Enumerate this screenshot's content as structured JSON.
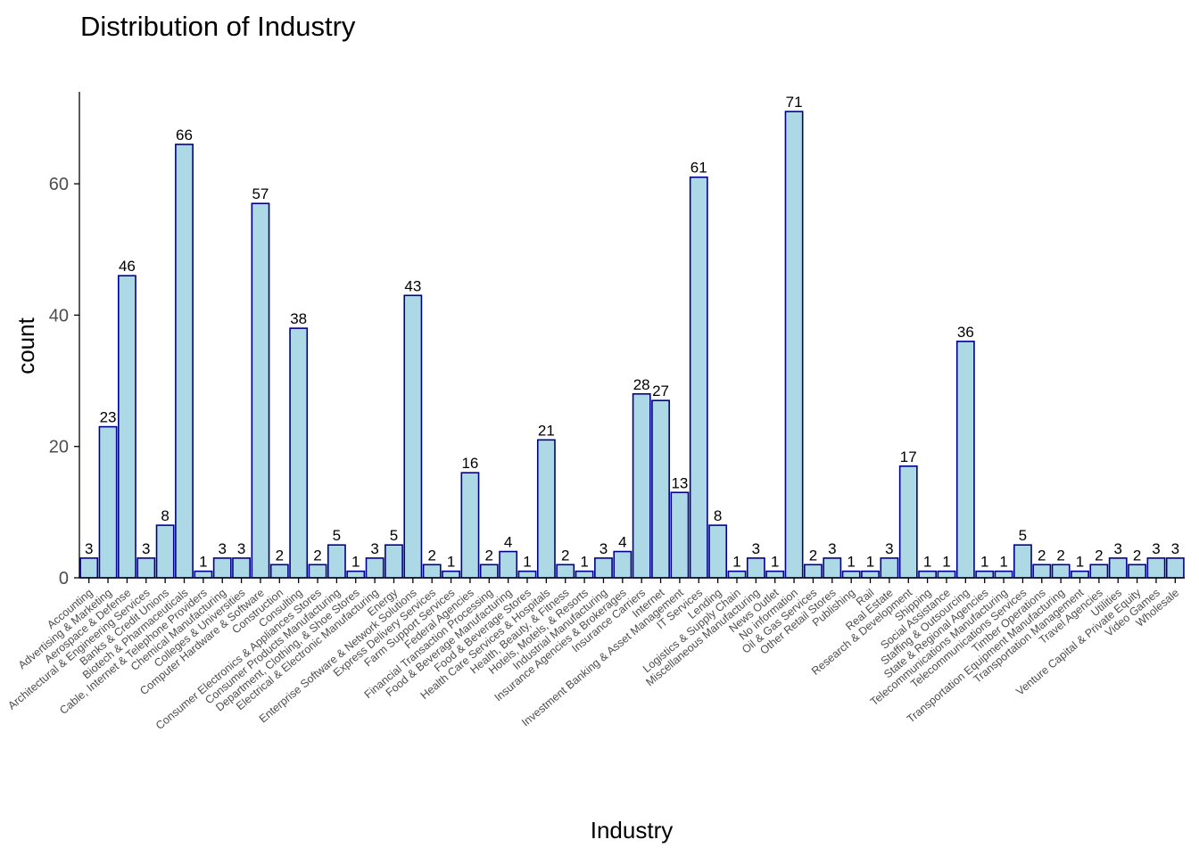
{
  "chart_data": {
    "type": "bar",
    "title": "Distribution of Industry",
    "xlabel": "Industry",
    "ylabel": "count",
    "ylim": [
      0,
      74
    ],
    "yticks": [
      0,
      20,
      40,
      60
    ],
    "grid": false,
    "legend": "none",
    "colors": {
      "fill": "#ADD8E6",
      "border": "#00008B",
      "axis": "#000000",
      "tick_text": "#4d4d4d"
    },
    "categories": [
      "Accounting",
      "Advertising & Marketing",
      "Aerospace & Defense",
      "Architectural & Engineering Services",
      "Banks & Credit Unions",
      "Biotech & Pharmaceuticals",
      "Cable, Internet & Telephone Providers",
      "Chemical Manufacturing",
      "Colleges & Universities",
      "Computer Hardware & Software",
      "Construction",
      "Consulting",
      "Consumer Electronics & Appliances Stores",
      "Consumer Products Manufacturing",
      "Department, Clothing, & Shoe Stores",
      "Electrical & Electronic Manufacturing",
      "Energy",
      "Enterprise Software & Network Solutions",
      "Express Delivery Services",
      "Farm Support Services",
      "Federal Agencies",
      "Financial Transaction Processing",
      "Food & Beverage Manufacturing",
      "Food & Beverage Stores",
      "Health Care Services & Hospitals",
      "Health, Beauty, & Fitness",
      "Hotels, Motels, & Resorts",
      "Industrial Manufacturing",
      "Insurance Agencies & Brokerages",
      "Insurance Carriers",
      "Internet",
      "Investment Banking & Asset Management",
      "IT Services",
      "Lending",
      "Logistics & Supply Chain",
      "Miscellaneous Manufacturing",
      "News Outlet",
      "No information",
      "Oil & Gas Services",
      "Other Retail Stores",
      "Publishing",
      "Rail",
      "Real Estate",
      "Research & Development",
      "Shipping",
      "Social Assistance",
      "Staffing & Outsourcing",
      "State & Regional Agencies",
      "Telecommunications Manufacturing",
      "Telecommunications Services",
      "Timber Operations",
      "Transportation Equipment Manufacturing",
      "Transportation Management",
      "Travel Agencies",
      "Utilities",
      "Venture Capital & Private Equity",
      "Video Games",
      "Wholesale"
    ],
    "values": [
      3,
      23,
      46,
      3,
      8,
      66,
      1,
      3,
      3,
      57,
      2,
      38,
      2,
      5,
      1,
      3,
      5,
      43,
      2,
      1,
      16,
      2,
      4,
      1,
      21,
      2,
      1,
      3,
      4,
      28,
      27,
      13,
      61,
      8,
      1,
      3,
      1,
      71,
      2,
      3,
      1,
      1,
      3,
      17,
      1,
      1,
      36,
      1,
      1,
      5,
      2,
      2,
      1,
      2,
      3,
      2,
      3,
      3
    ]
  }
}
